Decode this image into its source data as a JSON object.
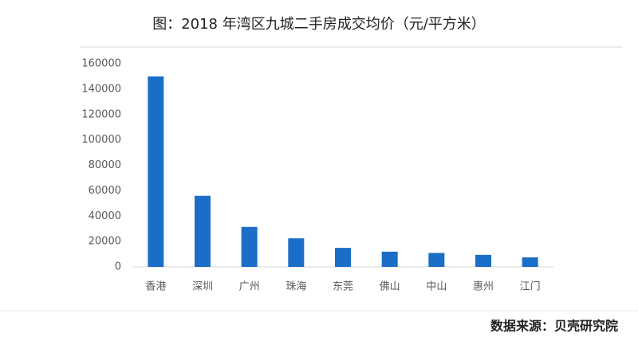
{
  "chart_data": {
    "type": "bar",
    "title": "图：2018 年湾区九城二手房成交均价（元/平方米）",
    "source": "数据来源：贝壳研究院",
    "categories": [
      "香港",
      "深圳",
      "广州",
      "珠海",
      "东莞",
      "佛山",
      "中山",
      "惠州",
      "江门"
    ],
    "values": [
      150000,
      56000,
      31500,
      22500,
      15000,
      12000,
      11000,
      9500,
      7500
    ],
    "color": "#1a6ec8",
    "ylim": [
      0,
      160000
    ],
    "yticks": [
      0,
      20000,
      40000,
      60000,
      80000,
      100000,
      120000,
      140000,
      160000
    ],
    "grid": false
  }
}
